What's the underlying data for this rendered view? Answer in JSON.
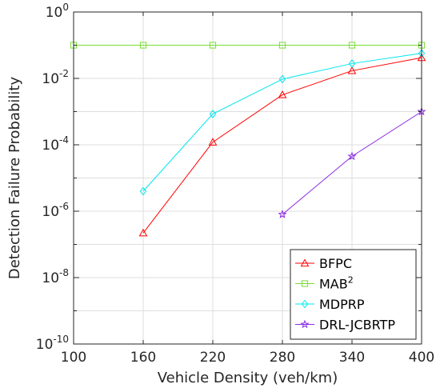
{
  "chart_data": {
    "type": "line",
    "xlabel": "Vehicle Density (veh/km)",
    "ylabel": "Detection Failure Probability",
    "x_ticks": [
      100,
      160,
      220,
      280,
      340,
      400
    ],
    "xlim": [
      100,
      400
    ],
    "y_scale": "log",
    "ylim": [
      1e-10,
      1
    ],
    "y_ticks": [
      {
        "base": "10",
        "exp": "0",
        "value": 1
      },
      {
        "base": "10",
        "exp": "-2",
        "value": 0.01
      },
      {
        "base": "10",
        "exp": "-4",
        "value": 0.0001
      },
      {
        "base": "10",
        "exp": "-6",
        "value": 1e-06
      },
      {
        "base": "10",
        "exp": "-8",
        "value": 1e-08
      },
      {
        "base": "10",
        "exp": "-10",
        "value": 1e-10
      }
    ],
    "grid": true,
    "legend_position": "bottom-right",
    "series": [
      {
        "name": "BFPC",
        "name_sup": "",
        "color": "#ff0000",
        "marker": "triangle",
        "x": [
          160,
          220,
          280,
          340,
          400
        ],
        "y": [
          2.2e-07,
          0.00012,
          0.0032,
          0.017,
          0.042
        ]
      },
      {
        "name": "MAB",
        "name_sup": "2",
        "color": "#77dd33",
        "marker": "square",
        "x": [
          100,
          160,
          220,
          280,
          340,
          400
        ],
        "y": [
          0.1,
          0.1,
          0.1,
          0.1,
          0.1,
          0.1
        ]
      },
      {
        "name": "MDPRP",
        "name_sup": "",
        "color": "#00e5ee",
        "marker": "diamond",
        "x": [
          160,
          220,
          280,
          340,
          400
        ],
        "y": [
          4e-06,
          0.00085,
          0.0095,
          0.028,
          0.057
        ]
      },
      {
        "name": "DRL-JCBRTP",
        "name_sup": "",
        "color": "#8a2be2",
        "marker": "star",
        "x": [
          280,
          340,
          400
        ],
        "y": [
          8e-07,
          4.5e-05,
          0.001
        ]
      }
    ]
  }
}
